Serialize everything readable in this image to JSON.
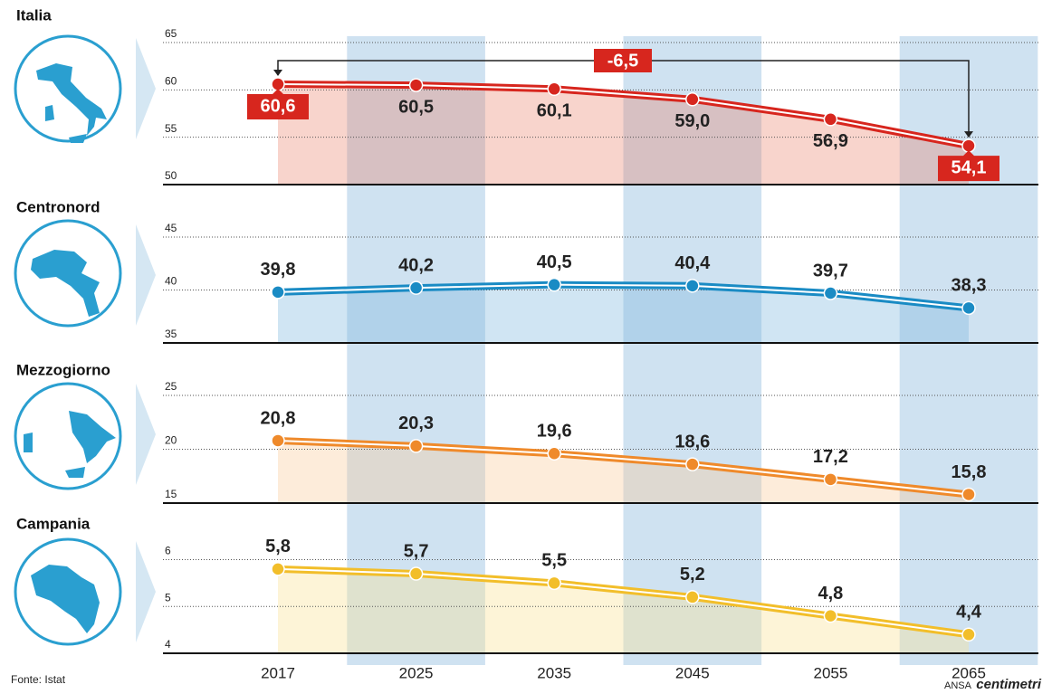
{
  "chart_data": [
    {
      "type": "line",
      "title": "Italia",
      "color": "#d7261e",
      "area_color": "rgba(232,120,95,0.32)",
      "values": [
        60.6,
        60.5,
        60.1,
        59.0,
        56.9,
        54.1
      ],
      "value_labels": [
        "60,6",
        "60,5",
        "60,1",
        "59,0",
        "56,9",
        "54,1"
      ],
      "ylim": [
        50,
        65
      ],
      "yticks": [
        50,
        55,
        60,
        65
      ],
      "label_position": "below",
      "highlight_ends": true,
      "annotation": "-6,5"
    },
    {
      "type": "line",
      "title": "Centronord",
      "color": "#1a8bc4",
      "area_color": "rgba(120,180,220,0.35)",
      "values": [
        39.8,
        40.2,
        40.5,
        40.4,
        39.7,
        38.3
      ],
      "value_labels": [
        "39,8",
        "40,2",
        "40,5",
        "40,4",
        "39,7",
        "38,3"
      ],
      "ylim": [
        35,
        45
      ],
      "yticks": [
        35,
        40,
        45
      ],
      "label_position": "above"
    },
    {
      "type": "line",
      "title": "Mezzogiorno",
      "color": "#ef8a2b",
      "area_color": "rgba(250,200,150,0.35)",
      "values": [
        20.8,
        20.3,
        19.6,
        18.6,
        17.2,
        15.8
      ],
      "value_labels": [
        "20,8",
        "20,3",
        "19,6",
        "18,6",
        "17,2",
        "15,8"
      ],
      "ylim": [
        15,
        25
      ],
      "yticks": [
        15,
        20,
        25
      ],
      "label_position": "above"
    },
    {
      "type": "line",
      "title": "Campania",
      "color": "#f2be2a",
      "area_color": "rgba(250,225,150,0.38)",
      "values": [
        5.8,
        5.7,
        5.5,
        5.2,
        4.8,
        4.4
      ],
      "value_labels": [
        "5,8",
        "5,7",
        "5,5",
        "5,2",
        "4,8",
        "4,4"
      ],
      "ylim": [
        4,
        6.3
      ],
      "yticks": [
        4,
        5,
        6
      ],
      "label_position": "above",
      "categories": [
        "2017",
        "2025",
        "2035",
        "2045",
        "2055",
        "2065"
      ]
    }
  ],
  "source": "Fonte: Istat",
  "credit_brand": "ANSA",
  "credit_name": "centimetri"
}
